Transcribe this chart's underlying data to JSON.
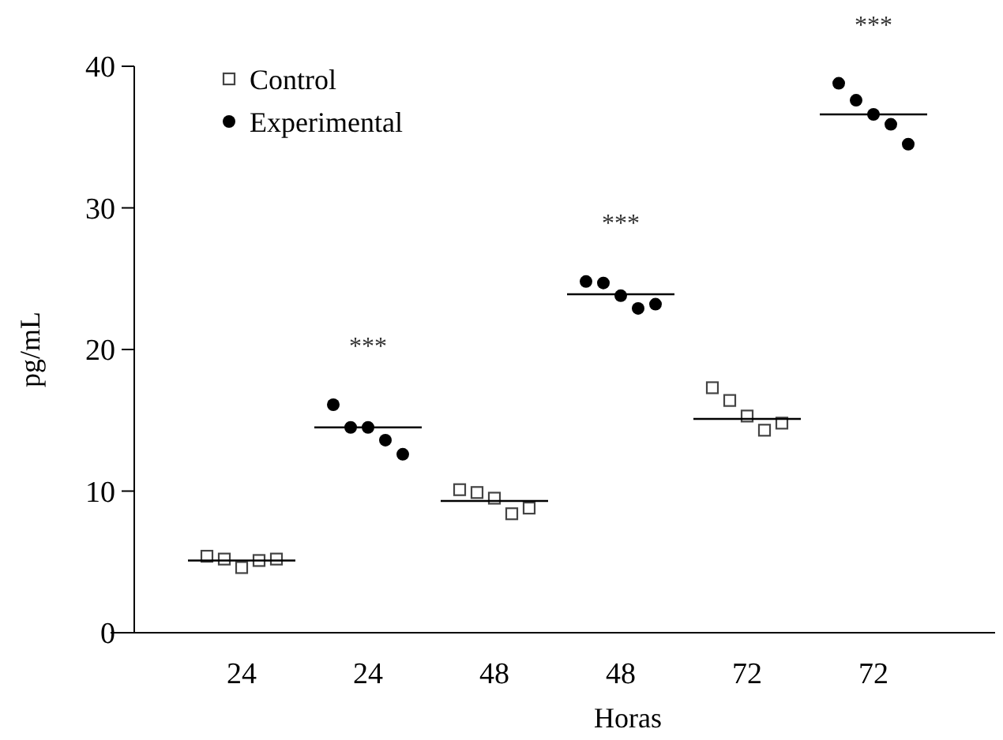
{
  "chart_data": {
    "type": "scatter",
    "xlabel": "Horas",
    "ylabel": "pg/mL",
    "categories": [
      "24",
      "24",
      "48",
      "48",
      "72",
      "72"
    ],
    "ylim": [
      0,
      40
    ],
    "yticks": [
      0,
      10,
      20,
      30,
      40
    ],
    "grid": false,
    "legend": "top left",
    "series": [
      {
        "name": "Control",
        "marker": "square",
        "color": "#444444",
        "values": [
          5.4,
          null,
          10.1,
          null,
          17.3,
          null
        ]
      },
      {
        "marker": "square",
        "color": "#444444",
        "values": [
          5.2,
          null,
          9.9,
          null,
          16.4,
          null
        ]
      },
      {
        "marker": "square",
        "color": "#444444",
        "values": [
          4.6,
          null,
          9.5,
          null,
          15.3,
          null
        ]
      },
      {
        "marker": "square",
        "color": "#444444",
        "values": [
          5.1,
          null,
          8.4,
          null,
          14.3,
          null
        ]
      },
      {
        "marker": "square",
        "color": "#444444",
        "values": [
          5.2,
          null,
          8.8,
          null,
          14.8,
          null
        ]
      },
      {
        "name": "Experimental",
        "marker": "circle",
        "color": "#000000",
        "values": [
          null,
          16.1,
          null,
          24.8,
          null,
          38.8
        ]
      },
      {
        "marker": "circle",
        "color": "#000000",
        "values": [
          null,
          14.5,
          null,
          24.7,
          null,
          37.6
        ]
      },
      {
        "marker": "circle",
        "color": "#000000",
        "values": [
          null,
          14.5,
          null,
          23.8,
          null,
          36.6
        ]
      },
      {
        "marker": "circle",
        "color": "#000000",
        "values": [
          null,
          13.6,
          null,
          22.9,
          null,
          35.9
        ]
      },
      {
        "marker": "circle",
        "color": "#000000",
        "values": [
          null,
          12.6,
          null,
          23.2,
          null,
          34.5
        ]
      },
      {
        "type": "box",
        "color": "#000000",
        "boxes": [
          {
            "low": 5.1,
            "q1": 5.1,
            "median": 5.1,
            "q3": 5.1,
            "high": 5.1
          },
          {
            "low": 14.5,
            "q1": 14.5,
            "median": 14.5,
            "q3": 14.5,
            "high": 14.5
          },
          {
            "low": 9.3,
            "q1": 9.3,
            "median": 9.3,
            "q3": 9.3,
            "high": 9.3
          },
          {
            "low": 23.9,
            "q1": 23.9,
            "median": 23.9,
            "q3": 23.9,
            "high": 23.9
          },
          {
            "low": 15.1,
            "q1": 15.1,
            "median": 15.1,
            "q3": 15.1,
            "high": 15.1
          },
          {
            "low": 36.6,
            "q1": 36.6,
            "median": 36.6,
            "q3": 36.6,
            "high": 36.6
          }
        ]
      }
    ],
    "annotations": [
      "***",
      "***",
      "***"
    ]
  }
}
